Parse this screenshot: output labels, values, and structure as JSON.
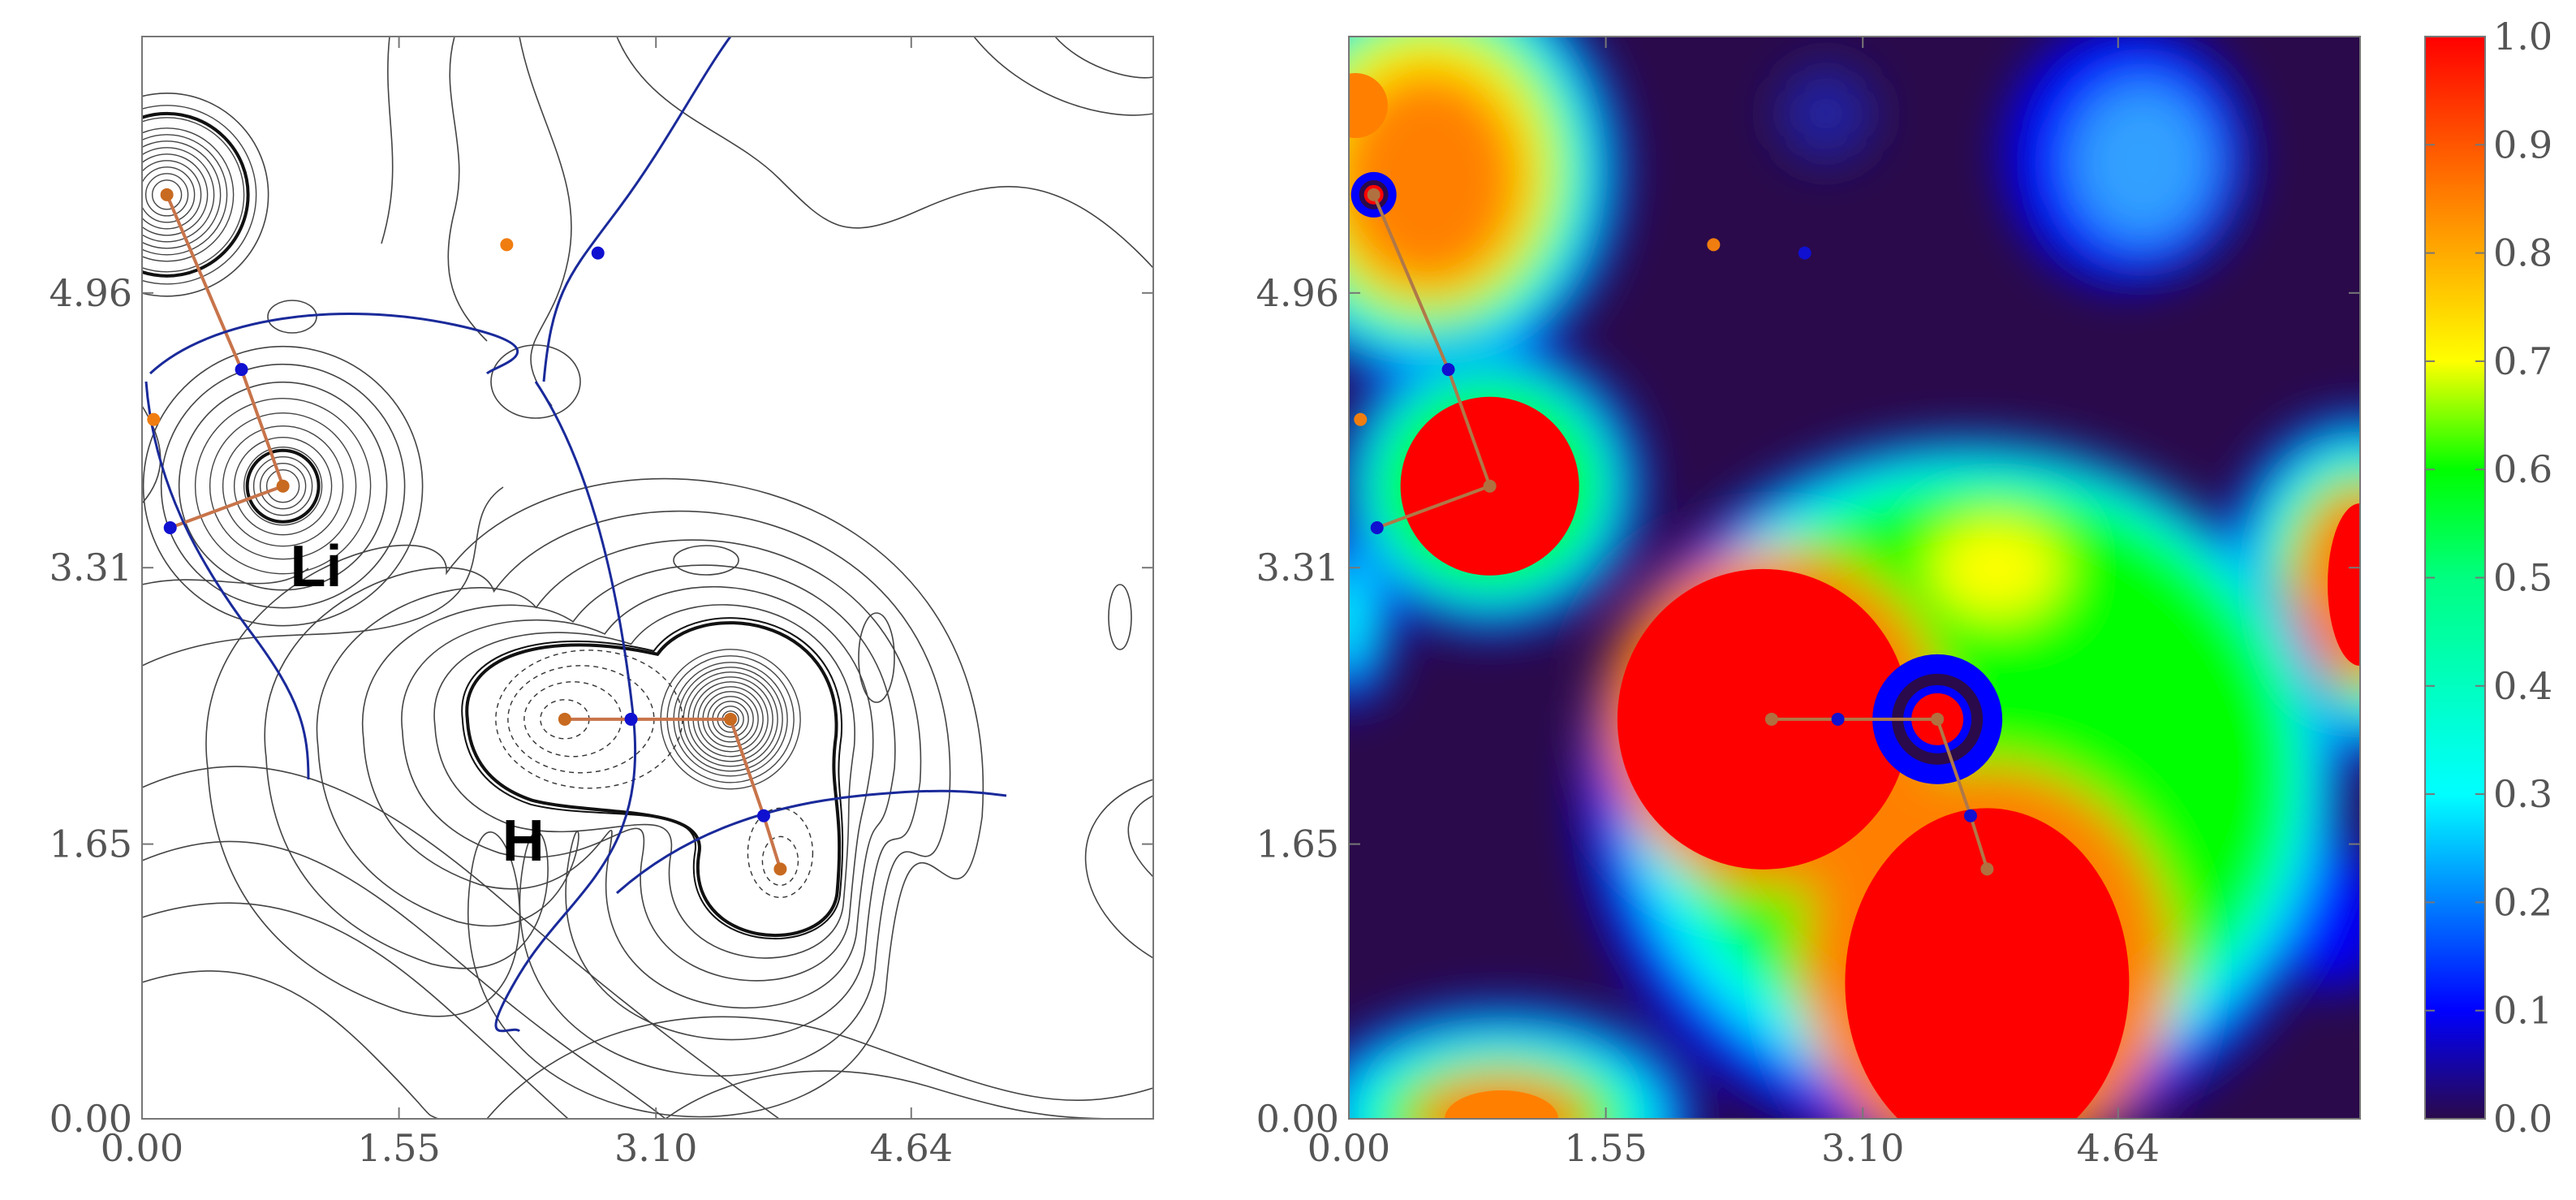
{
  "chart_data": [
    {
      "type": "contour",
      "panel": "left",
      "xlim": [
        0,
        6.1
      ],
      "ylim": [
        0,
        6.5
      ],
      "xticks": [
        "0.00",
        "1.55",
        "3.10",
        "4.64"
      ],
      "xtick_values": [
        0.0,
        1.55,
        3.1,
        4.64
      ],
      "yticks": [
        "0.00",
        "1.65",
        "3.31",
        "4.96"
      ],
      "ytick_values": [
        0.0,
        1.65,
        3.31,
        4.96
      ],
      "annotations": [
        {
          "text": "Li",
          "x": 1.05,
          "y": 3.2
        },
        {
          "text": "H",
          "x": 2.3,
          "y": 1.55
        }
      ],
      "nuclei": [
        {
          "x": 0.15,
          "y": 5.55
        },
        {
          "x": 0.85,
          "y": 3.8
        },
        {
          "x": 2.55,
          "y": 2.4
        },
        {
          "x": 3.55,
          "y": 2.4
        },
        {
          "x": 3.85,
          "y": 1.5
        }
      ],
      "critical_points_orange": [
        {
          "x": 2.2,
          "y": 5.25
        },
        {
          "x": 0.07,
          "y": 4.2
        }
      ],
      "critical_points_blue": [
        {
          "x": 0.6,
          "y": 4.5
        },
        {
          "x": 0.17,
          "y": 3.55
        },
        {
          "x": 2.75,
          "y": 5.2
        },
        {
          "x": 2.95,
          "y": 2.4
        },
        {
          "x": 3.75,
          "y": 1.82
        }
      ]
    },
    {
      "type": "heatmap",
      "panel": "right",
      "colormap": "rainbow",
      "xlim": [
        0,
        6.1
      ],
      "ylim": [
        0,
        6.5
      ],
      "xticks": [
        "0.00",
        "1.55",
        "3.10",
        "4.64"
      ],
      "xtick_values": [
        0.0,
        1.55,
        3.1,
        4.64
      ],
      "yticks": [
        "0.00",
        "1.65",
        "3.31",
        "4.96"
      ],
      "ytick_values": [
        0.0,
        1.65,
        3.31,
        4.96
      ],
      "colorbar_min": 0.0,
      "colorbar_max": 1.0,
      "colorbar_ticks": [
        "0.0",
        "0.1",
        "0.2",
        "0.3",
        "0.4",
        "0.5",
        "0.6",
        "0.7",
        "0.8",
        "0.9",
        "1.0"
      ],
      "colors": {
        "low": "#2a0a4a",
        "blue": "#0000ff",
        "cyan": "#00ffff",
        "green": "#00ff00",
        "yellow": "#ffff00",
        "orange": "#ff8000",
        "high": "#ff0000"
      }
    }
  ]
}
